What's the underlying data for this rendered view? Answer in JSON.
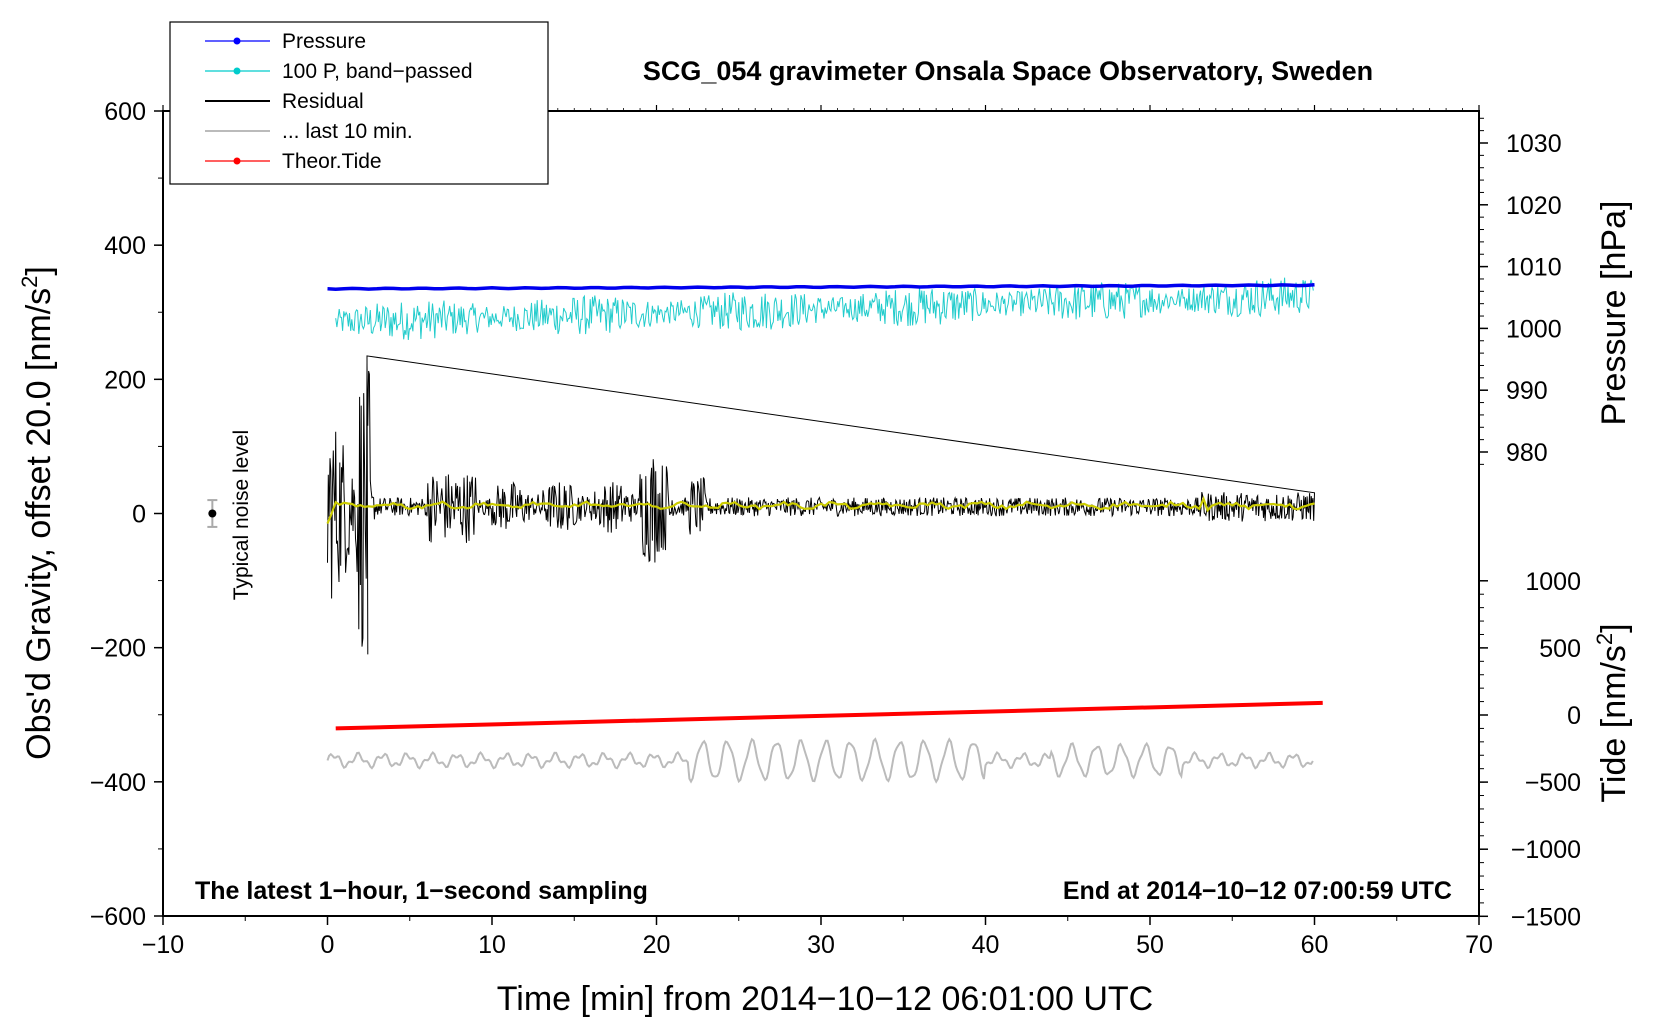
{
  "chart_data": {
    "type": "line",
    "title": "SCG_054 gravimeter Onsala Space Observatory, Sweden",
    "xlabel": "Time [min] from 2014−10−12 06:01:00 UTC",
    "ylabel": "Obs'd Gravity, offset 20.0 [nm/s",
    "ylabel_sup": "2",
    "ylabel_end": "]",
    "xlim": [
      -10,
      70
    ],
    "ylim": [
      -600,
      600
    ],
    "x_ticks": [
      "−10",
      "0",
      "10",
      "20",
      "30",
      "40",
      "50",
      "60",
      "70"
    ],
    "y_ticks": [
      "−600",
      "−400",
      "−200",
      "0",
      "200",
      "400",
      "600"
    ],
    "pressure_axis": {
      "label": "Pressure [hPa]",
      "ticks": [
        "980",
        "990",
        "1000",
        "1010",
        "1020",
        "1030"
      ],
      "ticks_values": [
        980,
        990,
        1000,
        1010,
        1020,
        1030
      ]
    },
    "tide_axis": {
      "label": "Tide [nm/s",
      "label_sup": "2",
      "label_end": "]",
      "ticks": [
        "−1500",
        "−1000",
        "−500",
        "0",
        "500",
        "1000"
      ],
      "ticks_values": [
        -1500,
        -1000,
        -500,
        0,
        500,
        1000
      ]
    },
    "legend": [
      {
        "name": "Pressure",
        "color": "#0000ff",
        "marker": true
      },
      {
        "name": "100 P, band−passed",
        "color": "#00cccc",
        "marker": true
      },
      {
        "name": "Residual",
        "color": "#000000",
        "marker": false
      },
      {
        "name": "... last 10 min.",
        "color": "#bbbbbb",
        "marker": false
      },
      {
        "name": "Theor.Tide",
        "color": "#ff0000",
        "marker": true
      }
    ],
    "series": [
      {
        "name": "Pressure",
        "color": "#0000ff",
        "axis": "pressure",
        "x": [
          0,
          60
        ],
        "values": [
          1006.4,
          1007.0
        ]
      },
      {
        "name": "100 P, band−passed",
        "color": "#00cccc",
        "axis": "left",
        "x_range": [
          0.5,
          60
        ],
        "center": [
          285,
          325
        ],
        "amplitude": 30
      },
      {
        "name": "Residual",
        "color": "#000000",
        "axis": "left",
        "x_range": [
          0,
          60
        ],
        "center": 10,
        "peak_min": -210,
        "peak_max": 235
      },
      {
        "name": "Residual smoothed",
        "color": "#cccc00",
        "axis": "left",
        "x_range": [
          0,
          60
        ],
        "center": 10
      },
      {
        "name": "... last 10 min.",
        "color": "#bbbbbb",
        "axis": "left",
        "x_range": [
          0,
          60
        ],
        "center": -368,
        "amplitude": 30
      },
      {
        "name": "Theor.Tide",
        "color": "#ff0000",
        "axis": "tide",
        "x": [
          0.5,
          60.5
        ],
        "values": [
          -100,
          90
        ]
      }
    ],
    "noise_marker": {
      "label": "Typical noise level",
      "x": -7,
      "y": 0,
      "err": 20
    },
    "annotation_left": "The latest 1−hour, 1−second sampling",
    "annotation_right": "End at 2014−10−12 07:00:59 UTC"
  }
}
